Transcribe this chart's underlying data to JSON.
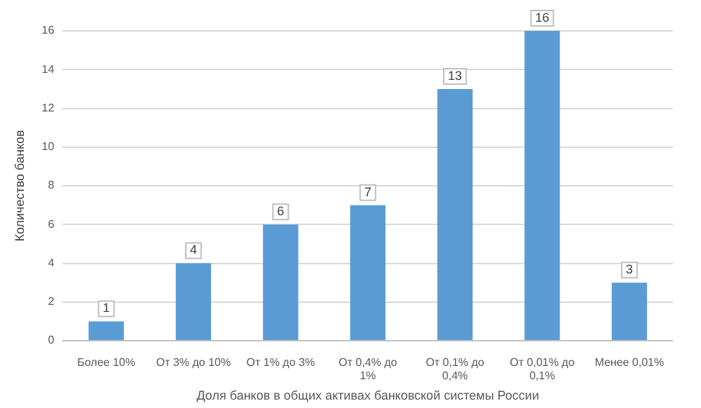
{
  "chart_data": {
    "type": "bar",
    "xlabel": "Доля банков в общих активах банковской системы России",
    "ylabel": "Количество банков",
    "categories": [
      "Более 10%",
      "От 3% до 10%",
      "От 1% до 3%",
      "От 0,4% до 1%",
      "От 0,1% до 0,4%",
      "От 0,01% до 0,1%",
      "Менее 0,01%"
    ],
    "values": [
      1,
      4,
      6,
      7,
      13,
      16,
      3
    ],
    "color": "#5b9bd5",
    "ylim": [
      0,
      16
    ],
    "yticks": [
      0,
      2,
      4,
      6,
      8,
      10,
      12,
      14,
      16
    ],
    "grid": "y",
    "data_labels": true,
    "legend": false
  }
}
